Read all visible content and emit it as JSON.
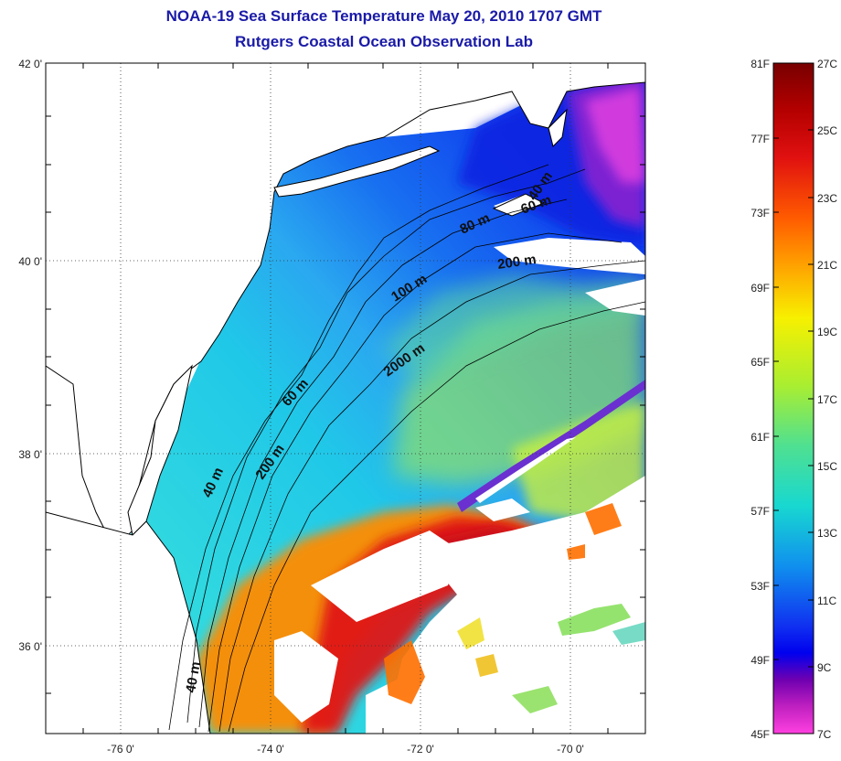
{
  "title_line1": "NOAA-19 Sea Surface Temperature May 20, 2010 1707 GMT",
  "title_line2": "Rutgers Coastal Ocean Observation Lab",
  "lat_labels": [
    "42 0'",
    "40 0'",
    "38 0'",
    "36 0'"
  ],
  "lon_labels": [
    "-76 0'",
    "-74 0'",
    "-72 0'",
    "-70 0'"
  ],
  "contour_labels": {
    "c40_north": "40 m",
    "c60_north": "60 m",
    "c80": "80 m",
    "c200_north": "200 m",
    "c100": "100 m",
    "c2000": "2000 m",
    "c60_mid": "60 m",
    "c200_mid": "200 m",
    "c40_mid": "40 m",
    "c40_south": "40 m"
  },
  "colorbar": {
    "fahrenheit": [
      "81F",
      "77F",
      "73F",
      "69F",
      "65F",
      "61F",
      "57F",
      "53F",
      "49F",
      "45F"
    ],
    "celsius": [
      "27C",
      "25C",
      "23C",
      "21C",
      "19C",
      "17C",
      "15C",
      "13C",
      "11C",
      "9C",
      "7C"
    ],
    "stops": [
      "#780000",
      "#b40000",
      "#e01010",
      "#ff5a00",
      "#ffa000",
      "#f7f000",
      "#aaee30",
      "#50e090",
      "#18d8d0",
      "#1090ee",
      "#1030f0",
      "#0000ee",
      "#7000b0",
      "#c020c0",
      "#ff40e0"
    ]
  },
  "colors": {
    "title": "#1a1aa8",
    "land": "#ffffff",
    "coastline": "#000000",
    "grid": "#000000"
  }
}
